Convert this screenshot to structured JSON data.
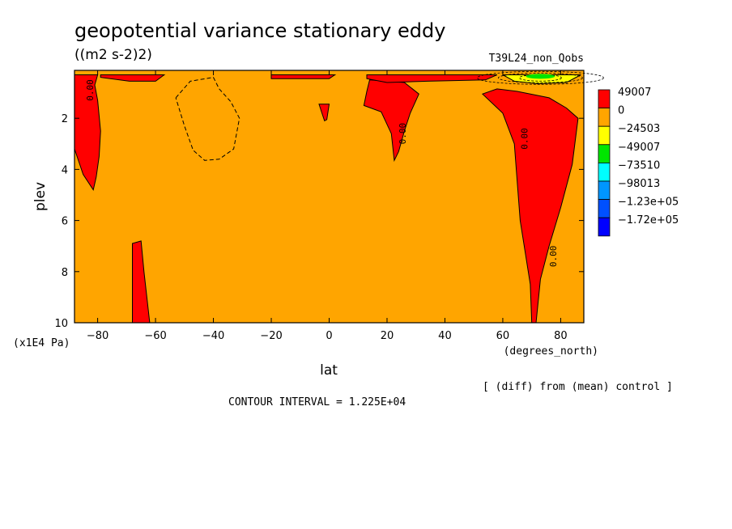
{
  "chart_data": {
    "type": "filled-contour",
    "title": "geopotential variance stationary eddy",
    "units": "((m2 s-2)2)",
    "experiment": "T39L24_non_Qobs",
    "xlabel": "lat",
    "xunits": "(degrees_north)",
    "ylabel": "plev",
    "yunits": "(x1E4 Pa)",
    "xlim": [
      -88,
      88
    ],
    "ylim": [
      10,
      0.3
    ],
    "x_ticks": [
      -80,
      -60,
      -40,
      -20,
      0,
      20,
      40,
      60,
      80
    ],
    "x_tick_labels": [
      "−80",
      "−60",
      "−40",
      "−20",
      "0",
      "20",
      "40",
      "60",
      "80"
    ],
    "y_ticks": [
      2,
      4,
      6,
      8,
      10
    ],
    "y_tick_labels": [
      "2",
      "4",
      "6",
      "8",
      "10"
    ],
    "note": "[ (diff) from (mean) control ]",
    "contour_interval": "CONTOUR INTERVAL = 1.225E+04",
    "contour_label": "0.00",
    "legend": [
      {
        "label": "49007",
        "color": "#ff0000"
      },
      {
        "label": "0",
        "color": "#ffa500"
      },
      {
        "label": "−24503",
        "color": "#ffff00"
      },
      {
        "label": "−49007",
        "color": "#00e600"
      },
      {
        "label": "−73510",
        "color": "#00ffff"
      },
      {
        "label": "−98013",
        "color": "#0096ff"
      },
      {
        "label": "−1.23e+05",
        "color": "#0050ff"
      },
      {
        "label": "−1.72e+05",
        "color": "#0000ff"
      }
    ],
    "regions": [
      {
        "name": "positive-sh-high-lat",
        "value_range": ">0",
        "points": [
          [
            -88,
            0.3
          ],
          [
            -80,
            0.3
          ],
          [
            -81,
            0.7
          ],
          [
            -80,
            1.3
          ],
          [
            -79,
            2.5
          ],
          [
            -79.5,
            3.5
          ],
          [
            -80.5,
            4.3
          ],
          [
            -81.5,
            4.8
          ],
          [
            -85,
            4.2
          ],
          [
            -88,
            3.2
          ]
        ]
      },
      {
        "name": "positive-sh-top-strip",
        "value_range": ">0",
        "points": [
          [
            -79,
            0.3
          ],
          [
            -57,
            0.3
          ],
          [
            -60,
            0.55
          ],
          [
            -69,
            0.55
          ],
          [
            -79,
            0.4
          ]
        ]
      },
      {
        "name": "positive-sh-lower",
        "value_range": ">0",
        "points": [
          [
            -68,
            10
          ],
          [
            -68,
            6.9
          ],
          [
            -65,
            6.8
          ],
          [
            -64,
            8
          ],
          [
            -62,
            10
          ]
        ]
      },
      {
        "name": "positive-top-mid",
        "value_range": ">0",
        "points": [
          [
            -20,
            0.3
          ],
          [
            2,
            0.3
          ],
          [
            0,
            0.45
          ],
          [
            -20,
            0.45
          ]
        ]
      },
      {
        "name": "positive-equator-blob",
        "value_range": ">0",
        "points": [
          [
            -3.5,
            1.45
          ],
          [
            0,
            1.45
          ],
          [
            -0.8,
            2.05
          ],
          [
            -1.6,
            2.1
          ],
          [
            -2.5,
            1.8
          ]
        ]
      },
      {
        "name": "positive-nh-subtropics",
        "value_range": ">0",
        "points": [
          [
            14,
            0.5
          ],
          [
            20,
            0.55
          ],
          [
            26,
            0.6
          ],
          [
            31,
            1.05
          ],
          [
            28,
            1.8
          ],
          [
            26,
            2.5
          ],
          [
            24,
            3.3
          ],
          [
            22.5,
            3.65
          ],
          [
            21.5,
            2.6
          ],
          [
            18,
            1.75
          ],
          [
            12,
            1.5
          ],
          [
            13,
            0.95
          ]
        ]
      },
      {
        "name": "positive-nh-top-strip",
        "value_range": ">0",
        "points": [
          [
            13,
            0.3
          ],
          [
            58,
            0.3
          ],
          [
            54,
            0.5
          ],
          [
            34,
            0.55
          ],
          [
            20,
            0.6
          ],
          [
            13,
            0.45
          ]
        ]
      },
      {
        "name": "positive-nh-high-lat",
        "value_range": ">0",
        "points": [
          [
            53,
            1.05
          ],
          [
            58,
            0.85
          ],
          [
            65,
            0.95
          ],
          [
            76,
            1.2
          ],
          [
            82,
            1.6
          ],
          [
            86,
            2.0
          ],
          [
            84,
            3.8
          ],
          [
            80,
            5.5
          ],
          [
            76,
            7.0
          ],
          [
            73,
            8.3
          ],
          [
            71.5,
            10
          ],
          [
            70,
            10
          ],
          [
            69.5,
            8.5
          ],
          [
            66,
            6
          ],
          [
            64,
            3
          ],
          [
            60,
            1.8
          ]
        ]
      },
      {
        "name": "negative-nh-pole-top",
        "value_range": "<0",
        "points": [
          [
            60,
            0.3
          ],
          [
            87,
            0.3
          ],
          [
            82,
            0.6
          ],
          [
            72,
            0.65
          ],
          [
            64,
            0.55
          ]
        ]
      }
    ],
    "dashed_contours": [
      {
        "name": "negative-contour-sh-mid",
        "value": "<0",
        "points": [
          [
            -53,
            1.2
          ],
          [
            -48,
            0.55
          ],
          [
            -40,
            0.4
          ],
          [
            -38,
            0.85
          ],
          [
            -34,
            1.35
          ],
          [
            -31,
            2.0
          ],
          [
            -33,
            3.2
          ],
          [
            -38,
            3.6
          ],
          [
            -43,
            3.65
          ],
          [
            -47,
            3.25
          ],
          [
            -50,
            2.3
          ],
          [
            -53,
            1.2
          ]
        ]
      }
    ],
    "zero_labels": [
      {
        "x": -81.5,
        "y": 0.9
      },
      {
        "x": 26.5,
        "y": 2.6
      },
      {
        "x": 68.5,
        "y": 2.8
      },
      {
        "x": 78.5,
        "y": 7.4
      }
    ]
  }
}
